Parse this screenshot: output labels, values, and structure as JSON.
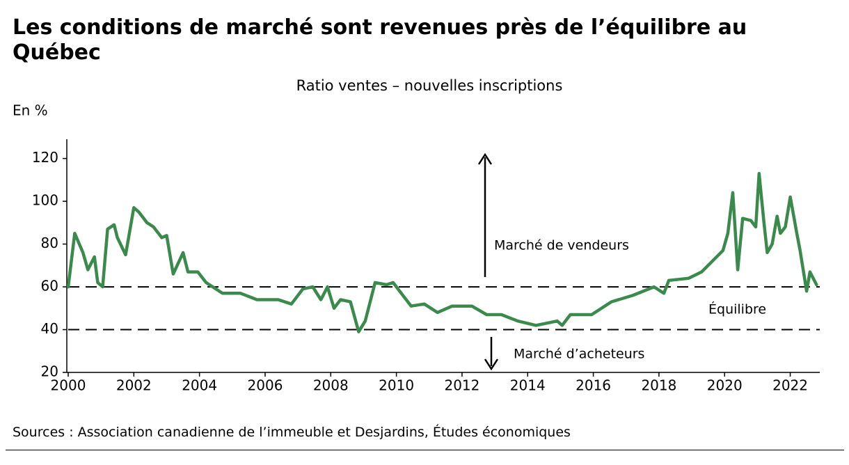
{
  "chart_data": {
    "type": "line",
    "title": "Les conditions de marché sont revenues près de l’équilibre au Québec",
    "subtitle": "Ratio ventes – nouvelles inscriptions",
    "y_axis_label": "En %",
    "source": "Sources : Association canadienne de l’immeuble et Desjardins, Études économiques",
    "annotations": [
      "Marché de vendeurs",
      "Équilibre",
      "Marché d’acheteurs"
    ],
    "reference_lines": [
      60,
      40
    ],
    "xlim": [
      2000,
      2022.9
    ],
    "xticks": [
      2000,
      2002,
      2004,
      2006,
      2008,
      2010,
      2012,
      2014,
      2016,
      2018,
      2020,
      2022
    ],
    "ylim": [
      20,
      129
    ],
    "yticks": [
      20,
      40,
      60,
      80,
      100,
      120
    ],
    "grid": false,
    "series": [
      {
        "name": "Ratio ventes – nouvelles inscriptions",
        "color": "#3a8a4c",
        "x": [
          2000.0,
          2000.2,
          2000.45,
          2000.6,
          2000.8,
          2000.9,
          2001.05,
          2001.2,
          2001.4,
          2001.5,
          2001.75,
          2002.0,
          2002.15,
          2002.4,
          2002.6,
          2002.85,
          2003.0,
          2003.2,
          2003.5,
          2003.65,
          2003.95,
          2004.2,
          2004.7,
          2005.25,
          2005.75,
          2006.4,
          2006.8,
          2007.15,
          2007.45,
          2007.7,
          2007.9,
          2008.1,
          2008.3,
          2008.6,
          2008.85,
          2009.05,
          2009.35,
          2009.7,
          2009.9,
          2010.1,
          2010.45,
          2010.85,
          2011.25,
          2011.7,
          2012.3,
          2012.75,
          2013.2,
          2013.7,
          2014.25,
          2014.9,
          2015.05,
          2015.3,
          2015.95,
          2016.55,
          2017.2,
          2017.85,
          2018.15,
          2018.3,
          2018.9,
          2019.3,
          2019.95,
          2020.1,
          2020.25,
          2020.4,
          2020.55,
          2020.8,
          2020.95,
          2021.05,
          2021.2,
          2021.3,
          2021.45,
          2021.6,
          2021.7,
          2021.85,
          2022.0,
          2022.2,
          2022.3,
          2022.5,
          2022.6,
          2022.8
        ],
        "values": [
          60,
          85,
          76,
          68,
          74,
          62,
          60,
          87,
          89,
          83,
          75,
          97,
          95,
          90,
          88,
          83,
          84,
          66,
          76,
          67,
          67,
          62,
          57,
          57,
          54,
          54,
          52,
          59,
          60,
          54,
          60,
          50,
          54,
          53,
          39,
          44,
          62,
          61,
          62,
          58,
          51,
          52,
          48,
          51,
          51,
          47,
          47,
          44,
          42,
          44,
          42,
          47,
          47,
          53,
          56,
          60,
          57,
          63,
          64,
          67,
          77,
          85,
          104,
          68,
          92,
          91,
          88,
          113,
          90,
          76,
          80,
          93,
          85,
          88,
          102,
          85,
          77,
          58,
          67,
          61
        ]
      }
    ]
  }
}
